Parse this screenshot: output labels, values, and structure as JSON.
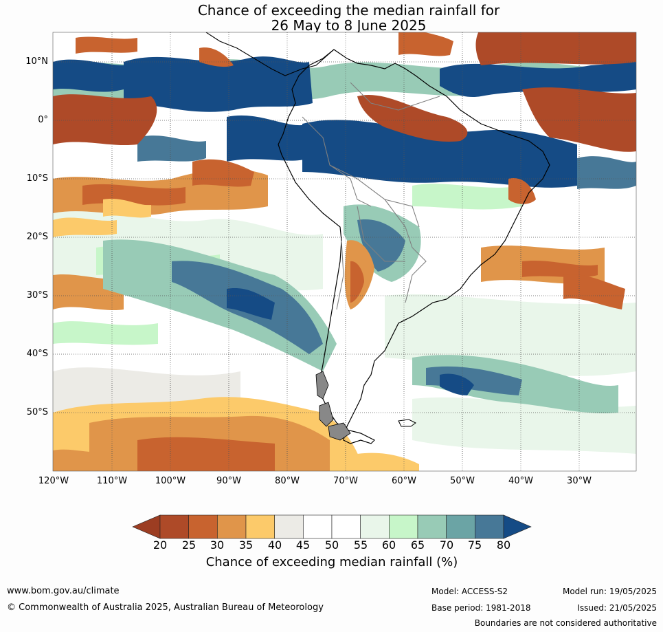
{
  "title": {
    "line1": "Chance of exceeding the median rainfall for",
    "line2": "26 May to 8 June 2025"
  },
  "axes": {
    "lat_labels": [
      "10°N",
      "0°",
      "10°S",
      "20°S",
      "30°S",
      "40°S",
      "50°S"
    ],
    "lon_labels": [
      "120°W",
      "110°W",
      "100°W",
      "90°W",
      "80°W",
      "70°W",
      "60°W",
      "50°W",
      "40°W",
      "30°W"
    ]
  },
  "colorbar": {
    "ticks": [
      "20",
      "25",
      "30",
      "35",
      "40",
      "45",
      "50",
      "55",
      "60",
      "65",
      "70",
      "75",
      "80"
    ],
    "label": "Chance of exceeding median rainfall (%)",
    "colors": [
      "#ae4a28",
      "#c8632f",
      "#e0954a",
      "#fcca6a",
      "#ecebe6",
      "#ffffff",
      "#ffffff",
      "#e9f6ea",
      "#c7f6c9",
      "#98cbb6",
      "#6ba4a5",
      "#477897"
    ],
    "under_color": "#9c3d22",
    "over_color": "#154b85"
  },
  "footer": {
    "website": "www.bom.gov.au/climate",
    "copyright": "© Commonwealth of Australia 2025, Australian Bureau of Meteorology",
    "model": "Model: ACCESS-S2",
    "base_period": "Base period: 1981-2018",
    "model_run": "Model run: 19/05/2025",
    "issued": "Issued: 21/05/2025",
    "disclaimer": "Boundaries are not considered authoritative"
  }
}
